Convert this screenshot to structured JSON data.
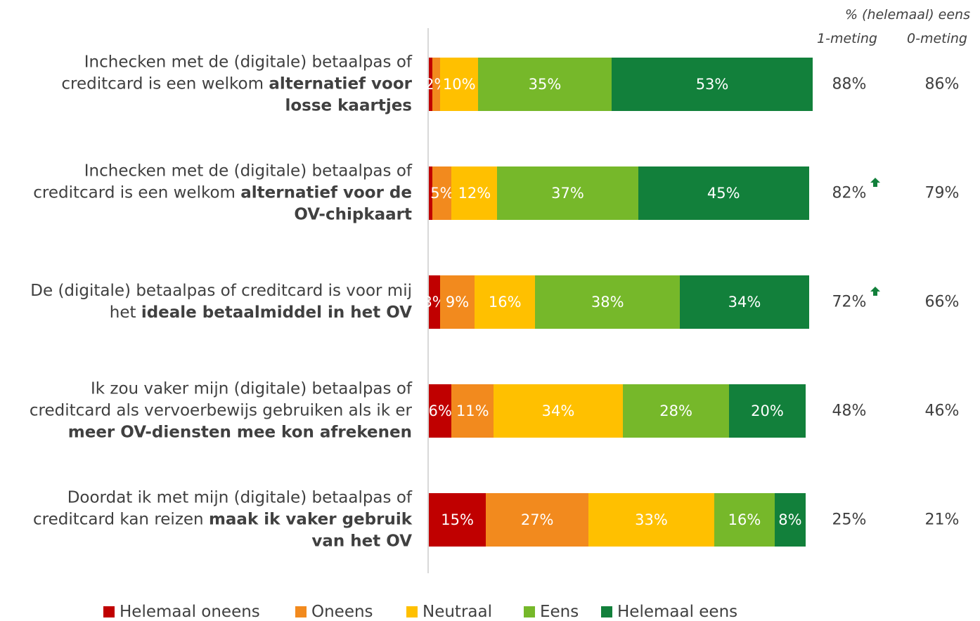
{
  "chart_data": {
    "type": "stacked-bar-horizontal",
    "categories": [
      [
        {
          "text": "Inchecken met de (digitale) betaalpas of creditcard is een welkom "
        },
        {
          "text": "alternatief voor losse kaartjes",
          "bold": true
        }
      ],
      [
        {
          "text": "Inchecken met de (digitale) betaalpas of creditcard is een welkom "
        },
        {
          "text": "alternatief voor de OV-chipkaart",
          "bold": true
        }
      ],
      [
        {
          "text": "De (digitale) betaalpas of creditcard is voor mij het "
        },
        {
          "text": "ideale betaalmiddel in het OV",
          "bold": true
        }
      ],
      [
        {
          "text": "Ik zou vaker mijn (digitale) betaalpas of creditcard als vervoerbewijs gebruiken als ik er "
        },
        {
          "text": "meer OV-diensten mee kon afrekenen",
          "bold": true
        }
      ],
      [
        {
          "text": "Doordat ik met mijn (digitale) betaalpas of creditcard kan reizen "
        },
        {
          "text": "maak ik vaker gebruik van het OV",
          "bold": true
        }
      ]
    ],
    "xlim": [
      0,
      100
    ],
    "series": [
      {
        "name": "Helemaal oneens",
        "color": "#c00000",
        "values": [
          1,
          1,
          3,
          6,
          15
        ],
        "value_labels": [
          null,
          null,
          "3%",
          "6%",
          "15%"
        ]
      },
      {
        "name": "Oneens",
        "color": "#f28a1e",
        "values": [
          2,
          5,
          9,
          11,
          27
        ],
        "value_labels": [
          "2%",
          "5%",
          "9%",
          "11%",
          "27%"
        ]
      },
      {
        "name": "Neutraal",
        "color": "#ffc000",
        "values": [
          10,
          12,
          16,
          34,
          33
        ],
        "value_labels": [
          "10%",
          "12%",
          "16%",
          "34%",
          "33%"
        ]
      },
      {
        "name": "Eens",
        "color": "#76b82a",
        "values": [
          35,
          37,
          38,
          28,
          16
        ],
        "value_labels": [
          "35%",
          "37%",
          "38%",
          "28%",
          "16%"
        ]
      },
      {
        "name": "Helemaal eens",
        "color": "#12803b",
        "values": [
          53,
          45,
          34,
          20,
          8
        ],
        "value_labels": [
          "53%",
          "45%",
          "34%",
          "20%",
          "8%"
        ]
      }
    ],
    "summary": {
      "title": "% (helemaal) eens",
      "columns": [
        "1-meting",
        "0-meting"
      ],
      "rows": [
        [
          "88%",
          "86%"
        ],
        [
          "82%",
          "79%"
        ],
        [
          "72%",
          "66%"
        ],
        [
          "48%",
          "46%"
        ],
        [
          "25%",
          "21%"
        ]
      ],
      "up_arrow": [
        false,
        true,
        true,
        false,
        false
      ],
      "arrow_color": "#12803b"
    }
  }
}
